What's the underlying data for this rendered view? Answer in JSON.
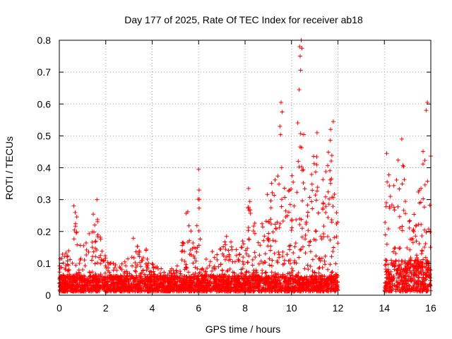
{
  "chart_data": {
    "type": "scatter",
    "title": "Day 177 of 2025, Rate Of TEC Index for receiver ab18",
    "xlabel": "GPS time / hours",
    "ylabel": "ROTI / TECUs",
    "xlim": [
      0,
      16
    ],
    "ylim": [
      0,
      0.8
    ],
    "xticks": [
      0,
      2,
      4,
      6,
      8,
      10,
      12,
      14,
      16
    ],
    "yticks": [
      0,
      0.1,
      0.2,
      0.3,
      0.4,
      0.5,
      0.6,
      0.7,
      0.8
    ],
    "xtick_labels": [
      "0",
      "2",
      "4",
      "6",
      "8",
      "10",
      "12",
      "14",
      "16"
    ],
    "ytick_labels": [
      "0",
      "0.1",
      "0.2",
      "0.3",
      "0.4",
      "0.5",
      "0.6",
      "0.7",
      "0.8"
    ],
    "grid": true,
    "marker": "plus",
    "color": "#ff0000",
    "series": [
      {
        "name": "ROTI",
        "segments": [
          {
            "x_start": 0.0,
            "x_end": 12.0,
            "baseline": 0.05
          },
          {
            "x_start": 14.0,
            "x_end": 16.0,
            "baseline": 0.1
          }
        ],
        "envelope": [
          [
            0.0,
            0.12
          ],
          [
            0.5,
            0.16
          ],
          [
            0.6,
            0.28
          ],
          [
            0.8,
            0.25
          ],
          [
            1.0,
            0.15
          ],
          [
            1.5,
            0.27
          ],
          [
            1.6,
            0.3
          ],
          [
            1.8,
            0.2
          ],
          [
            2.0,
            0.12
          ],
          [
            2.5,
            0.1
          ],
          [
            3.0,
            0.12
          ],
          [
            3.3,
            0.22
          ],
          [
            3.5,
            0.12
          ],
          [
            3.7,
            0.2
          ],
          [
            4.0,
            0.1
          ],
          [
            4.5,
            0.08
          ],
          [
            5.0,
            0.09
          ],
          [
            5.3,
            0.22
          ],
          [
            5.5,
            0.28
          ],
          [
            5.8,
            0.15
          ],
          [
            6.0,
            0.4
          ],
          [
            6.1,
            0.08
          ],
          [
            6.5,
            0.14
          ],
          [
            7.0,
            0.17
          ],
          [
            7.2,
            0.23
          ],
          [
            7.5,
            0.15
          ],
          [
            8.0,
            0.2
          ],
          [
            8.1,
            0.34
          ],
          [
            8.3,
            0.3
          ],
          [
            8.5,
            0.22
          ],
          [
            9.0,
            0.35
          ],
          [
            9.3,
            0.44
          ],
          [
            9.5,
            0.61
          ],
          [
            9.6,
            0.4
          ],
          [
            9.8,
            0.3
          ],
          [
            10.0,
            0.38
          ],
          [
            10.2,
            0.42
          ],
          [
            10.3,
            0.65
          ],
          [
            10.4,
            0.8
          ],
          [
            10.5,
            0.59
          ],
          [
            10.7,
            0.38
          ],
          [
            11.0,
            0.52
          ],
          [
            11.2,
            0.35
          ],
          [
            11.5,
            0.45
          ],
          [
            11.7,
            0.55
          ],
          [
            11.9,
            0.32
          ],
          [
            12.0,
            0.22
          ],
          [
            14.0,
            0.3
          ],
          [
            14.1,
            0.45
          ],
          [
            14.3,
            0.35
          ],
          [
            14.5,
            0.4
          ],
          [
            14.7,
            0.49
          ],
          [
            15.0,
            0.38
          ],
          [
            15.2,
            0.3
          ],
          [
            15.5,
            0.33
          ],
          [
            15.8,
            0.6
          ],
          [
            16.0,
            0.5
          ]
        ],
        "highlighted_points": [
          {
            "x": 10.42,
            "y": 0.8
          },
          {
            "x": 10.45,
            "y": 0.775
          },
          {
            "x": 10.35,
            "y": 0.78
          },
          {
            "x": 10.33,
            "y": 0.645
          },
          {
            "x": 9.55,
            "y": 0.605
          },
          {
            "x": 9.6,
            "y": 0.575
          },
          {
            "x": 15.85,
            "y": 0.605
          },
          {
            "x": 15.8,
            "y": 0.58
          },
          {
            "x": 6.0,
            "y": 0.395
          },
          {
            "x": 6.02,
            "y": 0.33
          },
          {
            "x": 11.8,
            "y": 0.545
          },
          {
            "x": 11.1,
            "y": 0.51
          },
          {
            "x": 14.1,
            "y": 0.445
          },
          {
            "x": 14.75,
            "y": 0.49
          },
          {
            "x": 9.5,
            "y": 0.53
          },
          {
            "x": 1.62,
            "y": 0.3
          },
          {
            "x": 0.62,
            "y": 0.28
          },
          {
            "x": 8.15,
            "y": 0.335
          }
        ]
      }
    ]
  }
}
